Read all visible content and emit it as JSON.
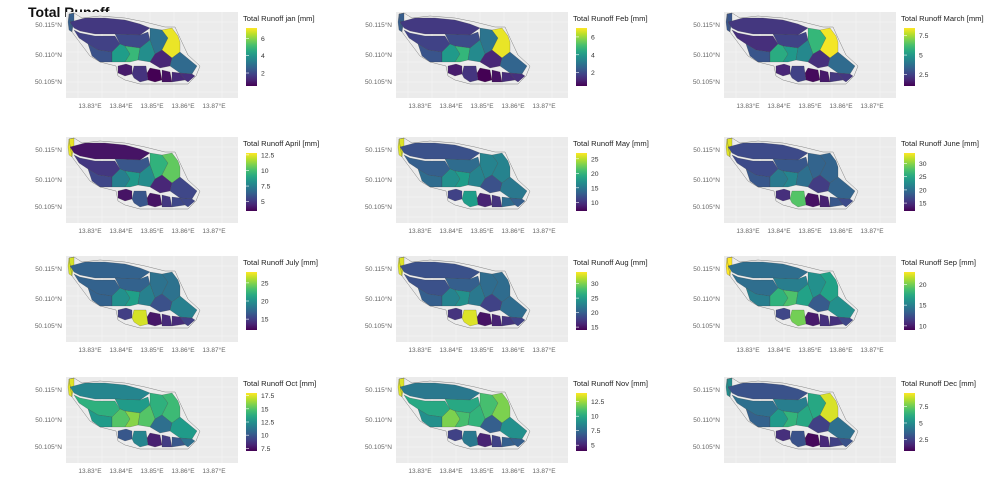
{
  "figure_title": "Total Runoff",
  "chart_data": [
    {
      "type": "heatmap",
      "legend_title": "Total Runoff jan [mm]",
      "legend_ticks": [
        2,
        4,
        6
      ],
      "range": [
        0.5,
        7.2
      ],
      "x_ticks": [
        "13.83°E",
        "13.84°E",
        "13.85°E",
        "13.86°E",
        "13.87°E"
      ],
      "y_ticks": [
        "50.115°N",
        "50.110°N",
        "50.105°N"
      ],
      "values": [
        2.5,
        1.6,
        1.8,
        2.0,
        3.0,
        7.0,
        2.2,
        4.2,
        5.0,
        3.8,
        1.2,
        2.8,
        1.0,
        0.5,
        0.8,
        1.5,
        1.3,
        1.4
      ]
    },
    {
      "type": "heatmap",
      "legend_title": "Total Runoff Feb [mm]",
      "legend_ticks": [
        2,
        4,
        6
      ],
      "range": [
        0.5,
        7.0
      ],
      "x_ticks": [
        "13.83°E",
        "13.84°E",
        "13.85°E",
        "13.86°E",
        "13.87°E"
      ],
      "y_ticks": [
        "50.115°N",
        "50.110°N",
        "50.105°N"
      ],
      "values": [
        2.4,
        1.6,
        1.8,
        2.0,
        3.0,
        6.8,
        2.2,
        4.0,
        4.8,
        3.6,
        1.2,
        2.6,
        1.0,
        0.5,
        0.8,
        1.5,
        1.3,
        1.4
      ]
    },
    {
      "type": "heatmap",
      "legend_title": "Total Runoff March [mm]",
      "legend_ticks": [
        2.5,
        5.0,
        7.5
      ],
      "range": [
        1.0,
        8.5
      ],
      "x_ticks": [
        "13.83°E",
        "13.84°E",
        "13.85°E",
        "13.86°E",
        "13.87°E"
      ],
      "y_ticks": [
        "50.115°N",
        "50.110°N",
        "50.105°N"
      ],
      "values": [
        3.0,
        2.2,
        2.0,
        2.5,
        6.0,
        8.4,
        3.0,
        5.6,
        5.0,
        4.5,
        2.0,
        3.6,
        1.8,
        1.2,
        1.5,
        2.5,
        2.2,
        2.2
      ]
    },
    {
      "type": "heatmap",
      "legend_title": "Total Runoff April [mm]",
      "legend_ticks": [
        5.0,
        7.5,
        10.0,
        12.5
      ],
      "range": [
        3.5,
        12.8
      ],
      "x_ticks": [
        "13.83°E",
        "13.84°E",
        "13.85°E",
        "13.86°E",
        "13.87°E"
      ],
      "y_ticks": [
        "50.115°N",
        "50.110°N",
        "50.105°N"
      ],
      "values": [
        12.5,
        4.0,
        5.0,
        6.0,
        9.5,
        10.5,
        5.5,
        7.5,
        8.5,
        8.0,
        4.5,
        5.5,
        4.0,
        4.0,
        5.0,
        6.0,
        5.5,
        5.5
      ]
    },
    {
      "type": "heatmap",
      "legend_title": "Total Runoff May [mm]",
      "legend_ticks": [
        10,
        15,
        20,
        25
      ],
      "range": [
        7,
        27
      ],
      "x_ticks": [
        "13.83°E",
        "13.84°E",
        "13.85°E",
        "13.86°E",
        "13.87°E"
      ],
      "y_ticks": [
        "50.115°N",
        "50.110°N",
        "50.105°N"
      ],
      "values": [
        26,
        12,
        13,
        14,
        16,
        16,
        14,
        17,
        18,
        16,
        12,
        15,
        11,
        9,
        10,
        18,
        14,
        13
      ]
    },
    {
      "type": "heatmap",
      "legend_title": "Total Runoff June [mm]",
      "legend_ticks": [
        15,
        20,
        25,
        30
      ],
      "range": [
        12,
        34
      ],
      "x_ticks": [
        "13.83°E",
        "13.84°E",
        "13.85°E",
        "13.86°E",
        "13.87°E"
      ],
      "y_ticks": [
        "50.115°N",
        "50.110°N",
        "50.105°N"
      ],
      "values": [
        33,
        17,
        17,
        18,
        19,
        19,
        18,
        21,
        22,
        20,
        16,
        19,
        15,
        13,
        14,
        28,
        18,
        17
      ]
    },
    {
      "type": "heatmap",
      "legend_title": "Total Runoff July [mm]",
      "legend_ticks": [
        15,
        20,
        25
      ],
      "range": [
        12,
        28
      ],
      "x_ticks": [
        "13.83°E",
        "13.84°E",
        "13.85°E",
        "13.86°E",
        "13.87°E"
      ],
      "y_ticks": [
        "50.115°N",
        "50.110°N",
        "50.105°N"
      ],
      "values": [
        27,
        17,
        17,
        17,
        18,
        18,
        17,
        20,
        21,
        19,
        16,
        19,
        15,
        13,
        14,
        27,
        14,
        15
      ]
    },
    {
      "type": "heatmap",
      "legend_title": "Total Runoff Aug [mm]",
      "legend_ticks": [
        15,
        20,
        25,
        30
      ],
      "range": [
        14,
        34
      ],
      "x_ticks": [
        "13.83°E",
        "13.84°E",
        "13.85°E",
        "13.86°E",
        "13.87°E"
      ],
      "y_ticks": [
        "50.115°N",
        "50.110°N",
        "50.105°N"
      ],
      "values": [
        33,
        19,
        19,
        20,
        21,
        21,
        20,
        23,
        24,
        22,
        18,
        21,
        17,
        15,
        16,
        33,
        17,
        18
      ]
    },
    {
      "type": "heatmap",
      "legend_title": "Total Runoff Sep [mm]",
      "legend_ticks": [
        10,
        15,
        20
      ],
      "range": [
        9,
        23
      ],
      "x_ticks": [
        "13.83°E",
        "13.84°E",
        "13.85°E",
        "13.86°E",
        "13.87°E"
      ],
      "y_ticks": [
        "50.115°N",
        "50.110°N",
        "50.105°N"
      ],
      "values": [
        23,
        14,
        14,
        15,
        16,
        17,
        15,
        18,
        19,
        17,
        13,
        16,
        12,
        10,
        11,
        20,
        11,
        12
      ]
    },
    {
      "type": "heatmap",
      "legend_title": "Total Runoff Oct [mm]",
      "legend_ticks": [
        7.5,
        10.0,
        12.5,
        15.0,
        17.5
      ],
      "range": [
        7,
        18
      ],
      "x_ticks": [
        "13.83°E",
        "13.84°E",
        "13.85°E",
        "13.86°E",
        "13.87°E"
      ],
      "y_ticks": [
        "50.115°N",
        "50.110°N",
        "50.105°N"
      ],
      "values": [
        17.5,
        12,
        14,
        13,
        14,
        14.5,
        13,
        15,
        16,
        15,
        11,
        13,
        10,
        8,
        9,
        12,
        10,
        11
      ]
    },
    {
      "type": "heatmap",
      "legend_title": "Total Runoff Nov [mm]",
      "legend_ticks": [
        5.0,
        7.5,
        10.0,
        12.5
      ],
      "range": [
        4,
        14
      ],
      "x_ticks": [
        "13.83°E",
        "13.84°E",
        "13.85°E",
        "13.86°E",
        "13.87°E"
      ],
      "y_ticks": [
        "50.115°N",
        "50.110°N",
        "50.105°N"
      ],
      "values": [
        13.5,
        8,
        10,
        10,
        11,
        12,
        9,
        12,
        11,
        10.5,
        7,
        9,
        6,
        5,
        6,
        8,
        7,
        7
      ]
    },
    {
      "type": "heatmap",
      "legend_title": "Total Runoff Dec [mm]",
      "legend_ticks": [
        2.5,
        5.0,
        7.5
      ],
      "range": [
        0.8,
        9.5
      ],
      "x_ticks": [],
      "y_ticks": [
        "50.115°N",
        "50.110°N",
        "50.105°N"
      ],
      "values": [
        5.0,
        3.0,
        4.0,
        4.5,
        6.0,
        9.0,
        3.5,
        5.5,
        6.5,
        6.0,
        2.5,
        4.0,
        2.0,
        1.0,
        1.8,
        3.0,
        2.5,
        3.0
      ]
    }
  ]
}
